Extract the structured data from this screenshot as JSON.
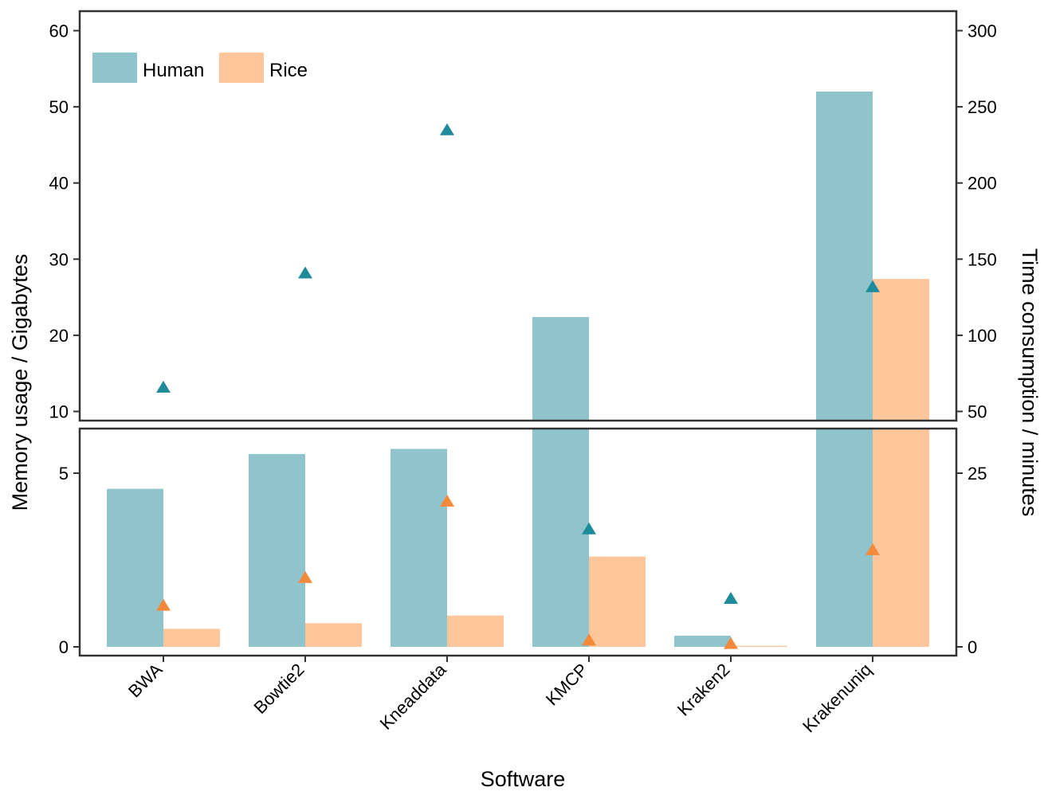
{
  "chart_data": {
    "type": "bar",
    "xlabel": "Software",
    "ylabel_left": "Memory usage / Gigabytes",
    "ylabel_right": "Time consumption / minutes",
    "categories": [
      "BWA",
      "Bowtie2",
      "Kneaddata",
      "KMCP",
      "Kraken2",
      "Krakenuniq"
    ],
    "legend": {
      "position": "top-left",
      "items": [
        {
          "label": "Human",
          "color": "#8fc4cc"
        },
        {
          "label": "Rice",
          "color": "#ffc69c"
        }
      ]
    },
    "axis_break": {
      "lower_range": [
        0,
        6.5
      ],
      "upper_range": [
        9,
        61
      ]
    },
    "left_axis": {
      "lower_ticks": [
        0,
        5
      ],
      "upper_ticks": [
        10,
        20,
        30,
        40,
        50,
        60
      ]
    },
    "right_axis": {
      "lower_ticks": [
        0,
        25
      ],
      "upper_ticks": [
        50,
        100,
        150,
        200,
        250,
        300
      ],
      "scale_factor": 5
    },
    "series": [
      {
        "name": "Human",
        "kind": "bar",
        "axis": "left",
        "color": "#8fc4cc",
        "values": [
          4.55,
          5.55,
          5.7,
          22.4,
          0.32,
          52
        ]
      },
      {
        "name": "Rice",
        "kind": "bar",
        "axis": "left",
        "color": "#ffc69c",
        "values": [
          0.52,
          0.68,
          0.9,
          2.6,
          0.03,
          27.4
        ]
      },
      {
        "name": "Human",
        "kind": "point",
        "marker": "triangle",
        "axis": "right",
        "color": "#1f8a99",
        "values": [
          66,
          141,
          235,
          17,
          7,
          132
        ]
      },
      {
        "name": "Rice",
        "kind": "point",
        "marker": "triangle",
        "axis": "right",
        "color": "#f5893b",
        "values": [
          6,
          10,
          21,
          1,
          0.5,
          14
        ]
      }
    ]
  }
}
